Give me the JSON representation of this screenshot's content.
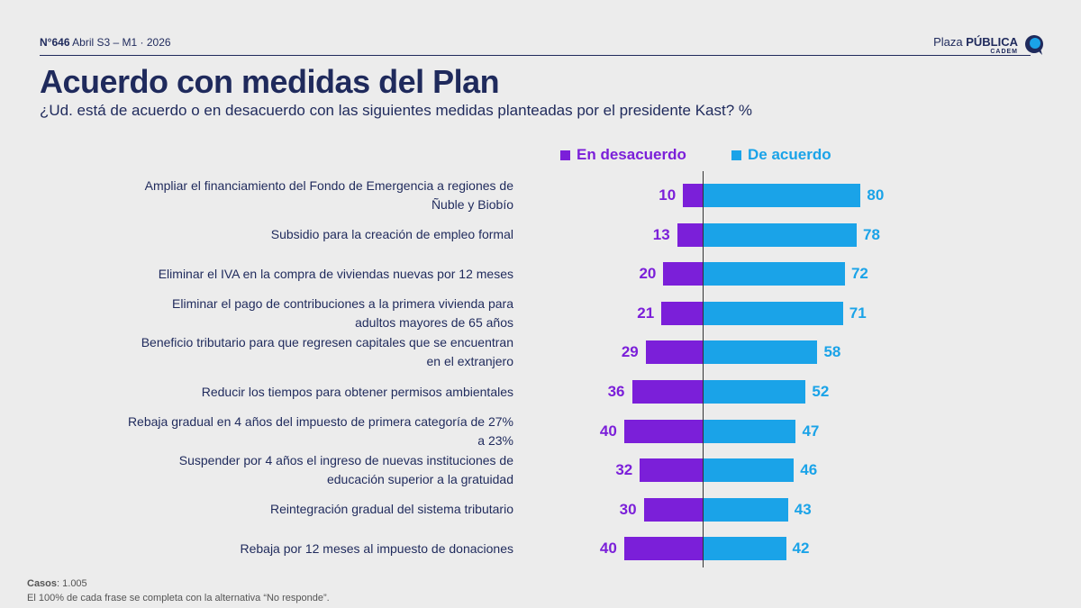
{
  "header": {
    "number": "N°646",
    "period": "Abril S3 – M1 · 2026"
  },
  "logo": {
    "plaza": "Plaza",
    "publica": "PÚBLICA",
    "cadem": "CADEM"
  },
  "title": "Acuerdo con medidas del Plan",
  "subtitle": "¿Ud. está de acuerdo o en desacuerdo con las siguientes medidas planteadas por el presidente Kast? %",
  "colors": {
    "disagree": "#7b1fd9",
    "agree": "#1aa3e8",
    "navy": "#1f2a5c"
  },
  "chart_data": {
    "type": "bar",
    "orientation": "horizontal-diverging",
    "categories": [
      [
        "Ampliar el financiamiento del Fondo de Emergencia a regiones de",
        "Ñuble y Biobío"
      ],
      [
        "Subsidio para la creación de empleo formal"
      ],
      [
        "Eliminar el IVA en la compra de viviendas nuevas por 12 meses"
      ],
      [
        "Eliminar el pago de contribuciones a la primera vivienda para",
        "adultos mayores de 65 años"
      ],
      [
        "Beneficio tributario para que regresen capitales que se encuentran",
        "en el extranjero"
      ],
      [
        "Reducir los tiempos para obtener permisos ambientales"
      ],
      [
        "Rebaja gradual en 4 años del impuesto de primera categoría de 27%",
        "a 23%"
      ],
      [
        "Suspender por 4 años el ingreso de nuevas instituciones de",
        "educación superior a la gratuidad"
      ],
      [
        "Reintegración gradual del sistema tributario"
      ],
      [
        "Rebaja por 12 meses al impuesto de donaciones"
      ]
    ],
    "series": [
      {
        "name": "En desacuerdo",
        "values": [
          10,
          13,
          20,
          21,
          29,
          36,
          40,
          32,
          30,
          40
        ]
      },
      {
        "name": "De acuerdo",
        "values": [
          80,
          78,
          72,
          71,
          58,
          52,
          47,
          46,
          43,
          42
        ]
      }
    ],
    "legend": "top"
  },
  "footer": {
    "casos_label": "Casos",
    "casos_value": ": 1.005",
    "note": "El 100% de cada frase se completa con la alternativa “No responde”."
  }
}
